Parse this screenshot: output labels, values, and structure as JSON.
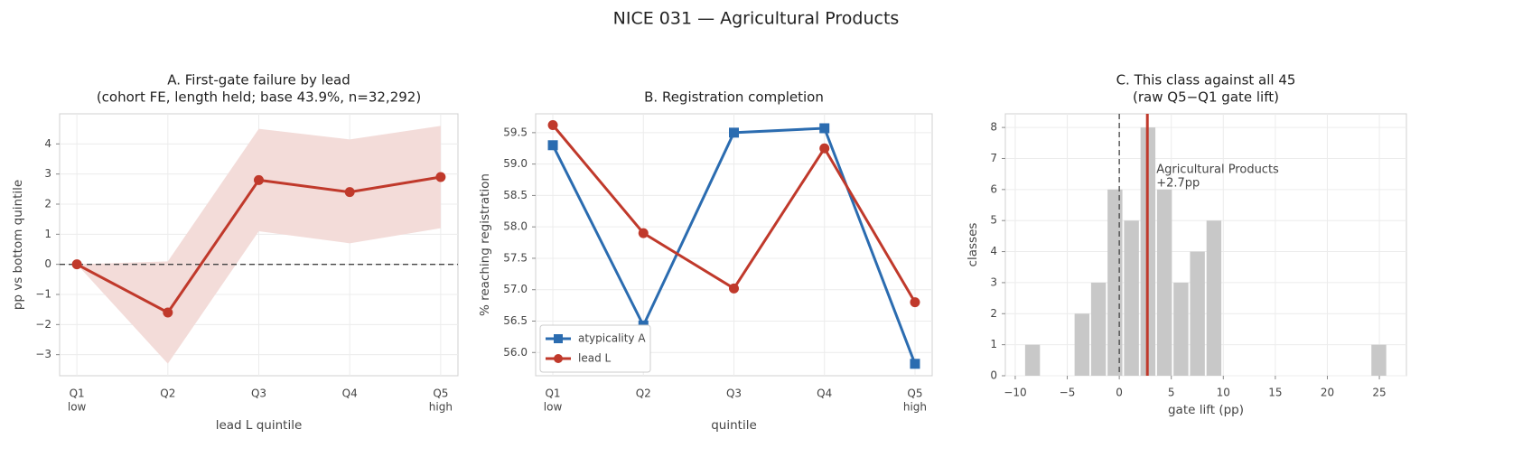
{
  "title": "NICE 031 — Agricultural Products",
  "chart_data": [
    {
      "type": "line",
      "title": "A. First-gate failure by lead",
      "subtitle": "(cohort FE, length held; base 43.9%, n=32,292)",
      "xlabel": "lead L quintile",
      "ylabel": "pp vs bottom quintile",
      "categories": [
        "Q1",
        "Q2",
        "Q3",
        "Q4",
        "Q5"
      ],
      "category_sublabels": [
        "low",
        null,
        null,
        null,
        "high"
      ],
      "series": [
        {
          "name": "lead L",
          "color": "#c0392b",
          "marker": "circle",
          "values": [
            0,
            -1.6,
            2.8,
            2.4,
            2.9
          ],
          "band_lower": [
            0,
            -3.3,
            1.1,
            0.7,
            1.2
          ],
          "band_upper": [
            0,
            0.1,
            4.5,
            4.15,
            4.6
          ],
          "band_color": "#f3dcd9"
        }
      ],
      "ylim": [
        -3.7,
        5.0
      ],
      "yticks": [
        {
          "value": -3,
          "label": "−3"
        },
        {
          "value": -2,
          "label": "−2"
        },
        {
          "value": -1,
          "label": "−1"
        },
        0,
        1,
        2,
        3,
        4
      ],
      "reference_line": 0,
      "reference_axis": "y",
      "grid": true,
      "legend": false
    },
    {
      "type": "line",
      "title": "B. Registration completion",
      "xlabel": "quintile",
      "ylabel": "% reaching registration",
      "categories": [
        "Q1",
        "Q2",
        "Q3",
        "Q4",
        "Q5"
      ],
      "category_sublabels": [
        "low",
        null,
        null,
        null,
        "high"
      ],
      "series": [
        {
          "name": "atypicality A",
          "color": "#2b6cb0",
          "marker": "square",
          "values": [
            59.3,
            56.43,
            59.5,
            59.57,
            55.82
          ]
        },
        {
          "name": "lead L",
          "color": "#c0392b",
          "marker": "circle",
          "values": [
            59.62,
            57.9,
            57.02,
            59.25,
            56.8
          ]
        }
      ],
      "ylim": [
        55.63,
        59.8
      ],
      "yticks": [
        {
          "value": 56,
          "label": "56.0"
        },
        56.5,
        {
          "value": 57,
          "label": "57.0"
        },
        57.5,
        {
          "value": 58,
          "label": "58.0"
        },
        58.5,
        {
          "value": 59,
          "label": "59.0"
        },
        59.5
      ],
      "grid": true,
      "legend": "lower left"
    },
    {
      "type": "histogram",
      "title": "C. This class against all 45",
      "subtitle": "(raw Q5−Q1 gate lift)",
      "xlabel": "gate lift (pp)",
      "ylabel": "classes",
      "color": "#c8c8c8",
      "bins": [
        -9.13,
        -7.545,
        -5.96,
        -4.375,
        -2.79,
        -1.205,
        0.38,
        1.965,
        3.55,
        5.135,
        6.72,
        8.305,
        9.89,
        11.475,
        13.06,
        14.645,
        16.23,
        17.815,
        19.4,
        20.985,
        22.57,
        24.155,
        25.74
      ],
      "values": [
        1,
        0,
        0,
        2,
        3,
        6,
        5,
        8,
        6,
        3,
        4,
        5,
        0,
        0,
        0,
        0,
        0,
        0,
        0,
        0,
        0,
        1
      ],
      "xlim": [
        -10.95,
        27.6
      ],
      "ylim": [
        0,
        8.44
      ],
      "xticks": [
        {
          "value": -10,
          "label": "−10"
        },
        {
          "value": -5,
          "label": "−5"
        },
        0,
        5,
        10,
        15,
        20,
        25
      ],
      "yticks": [
        0,
        1,
        2,
        3,
        4,
        5,
        6,
        7,
        8
      ],
      "reference_line": 0,
      "reference_axis": "x",
      "highlight": {
        "value": 2.7,
        "name": "Agricultural Products",
        "label": "+2.7pp",
        "color": "#c0392b"
      },
      "grid": true,
      "legend": false
    }
  ]
}
